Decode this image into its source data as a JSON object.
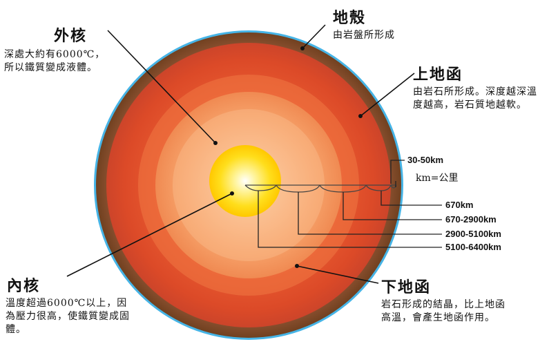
{
  "layers": {
    "crust": {
      "title": "地殼",
      "desc": "由岩盤所形成"
    },
    "outer_core": {
      "title": "外核",
      "desc": "深處大約有6000℃，所以鐵質變成液體。"
    },
    "upper_mantle": {
      "title": "上地函",
      "desc": "由岩石所形成。深度越深溫度越高，岩石質地越軟。"
    },
    "inner_core": {
      "title": "內核",
      "desc": "溫度超過6000℃以上，因為壓力很高，使鐵質變成固體。"
    },
    "lower_mantle": {
      "title": "下地函",
      "desc": "岩石形成的結晶，比上地函高溫，會產生地函作用。"
    }
  },
  "depths": {
    "crust": "30-50km",
    "upper": "670km",
    "lower": "670-2900km",
    "outer_core": "2900-5100km",
    "inner_core": "5100-6400km"
  },
  "km_note": "km=公里",
  "colors": {
    "ocean_rim": "#46b4e6",
    "crust": "#7f4a2c",
    "mantle_outer": "#d8492a",
    "mantle_inner": "#ee6436",
    "outer_core": "#f6a068",
    "inner_core": "#ffd200"
  }
}
